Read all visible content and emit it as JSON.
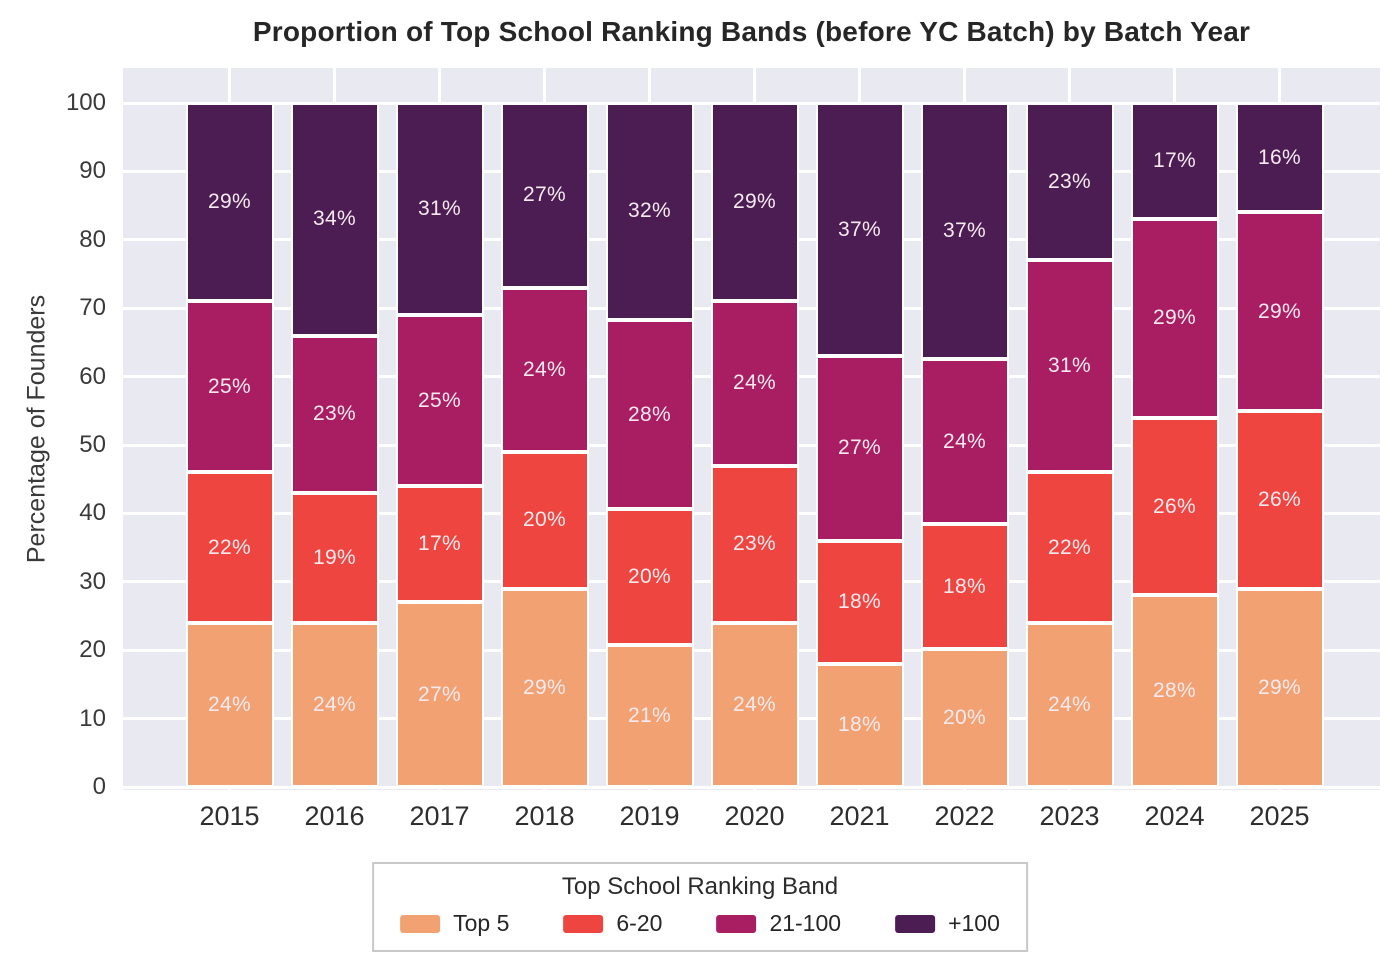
{
  "chart_data": {
    "type": "bar",
    "stacked": true,
    "title": "Proportion of Top School Ranking Bands (before YC Batch) by Batch Year",
    "xlabel": "",
    "ylabel": "Percentage of Founders",
    "ylim": [
      0,
      105
    ],
    "yticks": [
      0,
      10,
      20,
      30,
      40,
      50,
      60,
      70,
      80,
      90,
      100
    ],
    "grid": true,
    "plot_bg_color": "#E9E9F1",
    "grid_color": "#FFFFFF",
    "bar_label_color": "#F6EAEE",
    "bar_label_suffix": "%",
    "categories": [
      "2015",
      "2016",
      "2017",
      "2018",
      "2019",
      "2020",
      "2021",
      "2022",
      "2023",
      "2024",
      "2025"
    ],
    "series": [
      {
        "name": "Top 5",
        "color": "#F2A172",
        "values": [
          24,
          24,
          27,
          29,
          21,
          24,
          18,
          20,
          24,
          28,
          29
        ]
      },
      {
        "name": "6-20",
        "color": "#EF4540",
        "values": [
          22,
          19,
          17,
          20,
          20,
          23,
          18,
          18,
          22,
          26,
          26
        ]
      },
      {
        "name": "21-100",
        "color": "#A91E63",
        "values": [
          25,
          23,
          25,
          24,
          28,
          24,
          27,
          24,
          31,
          29,
          29
        ]
      },
      {
        "name": "+100",
        "color": "#4C1D53",
        "values": [
          29,
          34,
          31,
          27,
          32,
          29,
          37,
          37,
          23,
          17,
          16
        ]
      }
    ],
    "legend": {
      "title": "Top School Ranking Band",
      "position": "bottom",
      "entries": [
        "Top 5",
        "6-20",
        "21-100",
        "+100"
      ]
    }
  }
}
